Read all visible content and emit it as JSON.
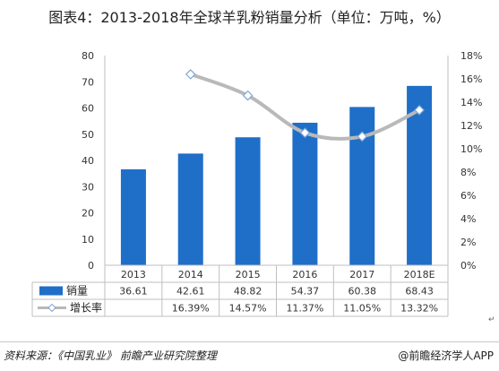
{
  "title": "图表4：2013-2018年全球羊乳粉销量分析（单位：万吨，%）",
  "footer": {
    "source": "资料来源：《中国乳业》 前瞻产业研究院整理",
    "brand": "@前瞻经济学人APP"
  },
  "colors": {
    "bar": "#1f6fc8",
    "line": "#b9b9b9",
    "marker_fill": "#ffffff",
    "marker_stroke": "#7fa7d6",
    "grid": "#d9d9d9"
  },
  "chart_data": {
    "type": "bar",
    "title": "图表4：2013-2018年全球羊乳粉销量分析（单位：万吨，%）",
    "categories": [
      "2013",
      "2014",
      "2015",
      "2016",
      "2017",
      "2018E"
    ],
    "series": [
      {
        "name": "销量",
        "type": "bar",
        "axis": "left",
        "values": [
          36.61,
          42.61,
          48.82,
          54.37,
          60.38,
          68.43
        ],
        "labels": [
          "36.61",
          "42.61",
          "48.82",
          "54.37",
          "60.38",
          "68.43"
        ]
      },
      {
        "name": "增长率",
        "type": "line",
        "axis": "right",
        "values": [
          null,
          16.39,
          14.57,
          11.37,
          11.05,
          13.32
        ],
        "labels": [
          "",
          "16.39%",
          "14.57%",
          "11.37%",
          "11.05%",
          "13.32%"
        ]
      }
    ],
    "left_axis": {
      "ylim": [
        0,
        80
      ],
      "ticks": [
        "0",
        "10",
        "20",
        "30",
        "40",
        "50",
        "60",
        "70",
        "80"
      ]
    },
    "right_axis": {
      "ylim": [
        0,
        18
      ],
      "ticks": [
        "0%",
        "2%",
        "4%",
        "6%",
        "8%",
        "10%",
        "12%",
        "14%",
        "16%",
        "18%"
      ]
    },
    "data_table": true,
    "grid": false
  }
}
